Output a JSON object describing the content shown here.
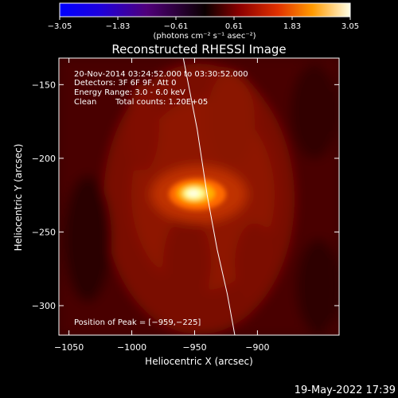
{
  "chart_data": {
    "type": "heatmap",
    "title": "Reconstructed RHESSI Image",
    "xlabel": "Heliocentric X (arcsec)",
    "ylabel": "Heliocentric Y (arcsec)",
    "xlim": [
      -1058,
      -835
    ],
    "ylim": [
      -320,
      -132
    ],
    "xticks": [
      -1050,
      -1000,
      -950,
      -900
    ],
    "xtick_labels": [
      "−1050",
      "−1000",
      "−950",
      "−900"
    ],
    "yticks": [
      -150,
      -200,
      -250,
      -300
    ],
    "ytick_labels": [
      "−150",
      "−200",
      "−250",
      "−300"
    ],
    "colorbar": {
      "range": [
        -3.05,
        3.05
      ],
      "ticks": [
        -3.05,
        -1.83,
        -0.61,
        0.61,
        1.83,
        3.05
      ],
      "tick_labels": [
        "−3.05",
        "−1.83",
        "−0.61",
        "0.61",
        "1.83",
        "3.05"
      ],
      "label": "(photons cm⁻² s⁻¹ asec⁻²)",
      "colormap": "rhessi-heat"
    },
    "annotations": [
      "20-Nov-2014 03:24:52.000 to 03:30:52.000",
      "Detectors: 3F 6F 9F, Att 0",
      "Energy Range: 3.0 - 6.0 keV",
      "Clean",
      "Total counts: 1.20E+05"
    ],
    "peak_label": "Position of Peak = [−959,−225]",
    "peak": [
      -959,
      -225
    ],
    "limb_curve": [
      [
        -959,
        -132
      ],
      [
        -948,
        -180
      ],
      [
        -940,
        -225
      ],
      [
        -932,
        -262
      ],
      [
        -924,
        -292
      ],
      [
        -918,
        -320
      ]
    ]
  },
  "timestamp": "19-May-2022 17:39",
  "colors": {
    "background": "#000000",
    "text": "#ffffff",
    "limb": "#ffffff",
    "peak": "#ffffc8"
  }
}
